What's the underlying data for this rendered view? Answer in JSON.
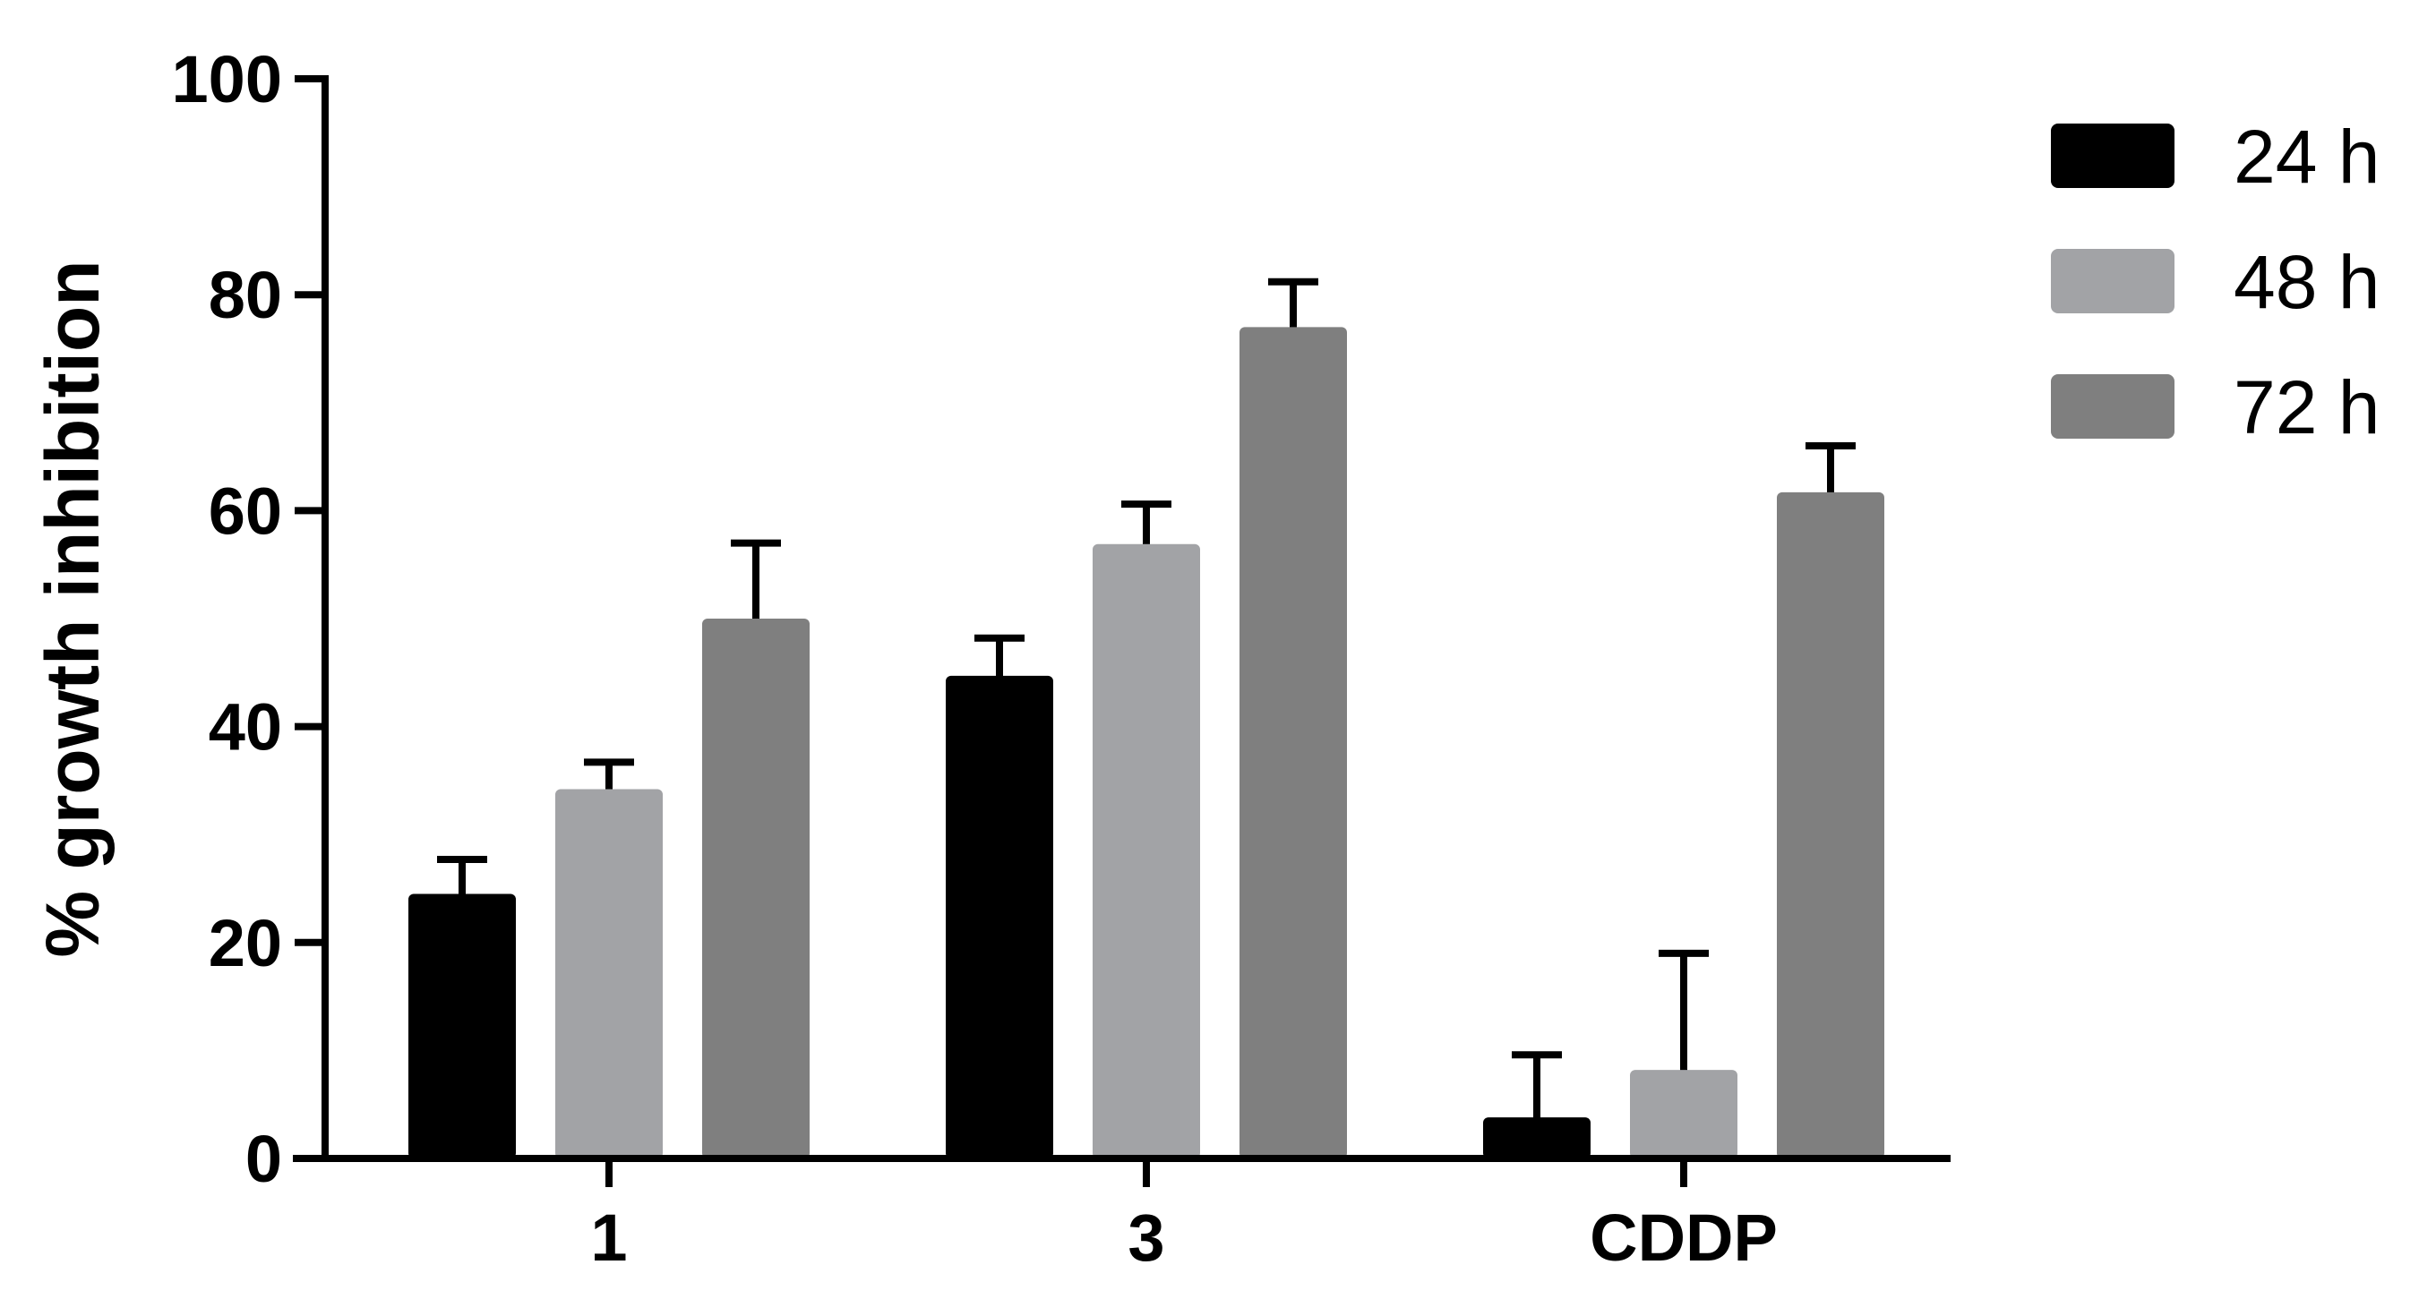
{
  "chart_data": {
    "type": "bar",
    "title": "",
    "xlabel": "",
    "ylabel": "% growth inhibition",
    "ylim": [
      0,
      100
    ],
    "yticks": [
      0,
      20,
      40,
      60,
      80,
      100
    ],
    "categories": [
      "1",
      "3",
      "CDDP"
    ],
    "series": [
      {
        "name": "24 h",
        "color": "#000000",
        "values": [
          24.5,
          44.7,
          3.8
        ],
        "errors": [
          3.2,
          3.5,
          5.8
        ]
      },
      {
        "name": "48 h",
        "color": "#a2a3a6",
        "values": [
          34.2,
          56.9,
          8.2
        ],
        "errors": [
          2.5,
          3.7,
          10.8
        ]
      },
      {
        "name": "72 h",
        "color": "#7f7f7f",
        "values": [
          50.0,
          77.0,
          61.7
        ],
        "errors": [
          7.0,
          4.2,
          4.3
        ]
      }
    ],
    "legend_position": "top-right",
    "grid": false
  }
}
